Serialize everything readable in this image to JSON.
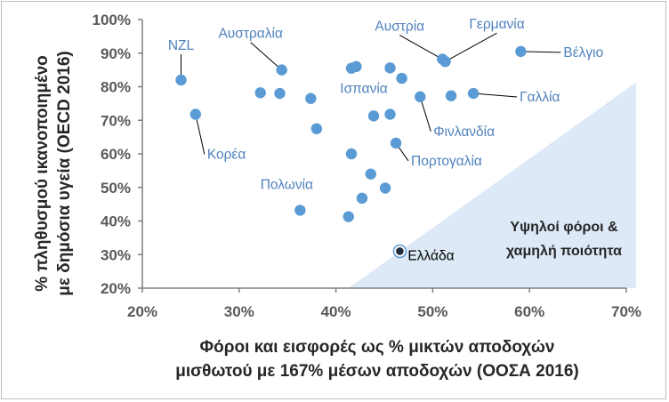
{
  "colors": {
    "point": "#5b9bd5",
    "label": "#4f81bd",
    "highlight_point": "#1f2d3d",
    "zone_fill": "#dde9f6",
    "grid": "#d9d9d9",
    "axis": "#7f7f7f"
  },
  "chart_data": {
    "type": "scatter",
    "xlabel": [
      "Φόροι και εισφορές ως %  μικτών αποδοχών",
      "μισθωτού με 167%  μέσων αποδοχών (ΟΟΣΑ 2016)"
    ],
    "ylabel": [
      "% πληθυσμού ικανοποιημένο",
      "με δημόσια υγεία (OECD 2016)"
    ],
    "xlim": [
      20,
      70
    ],
    "ylim": [
      20,
      100
    ],
    "x_ticks": [
      "20%",
      "30%",
      "40%",
      "50%",
      "60%",
      "70%"
    ],
    "y_ticks": [
      "20%",
      "30%",
      "40%",
      "50%",
      "60%",
      "70%",
      "80%",
      "90%",
      "100%"
    ],
    "grid": false,
    "zone": {
      "label": [
        "Υψηλοί φόροι &",
        "χαμηλή ποιότητα"
      ],
      "polygon": [
        [
          41.3,
          20
        ],
        [
          71,
          20
        ],
        [
          71,
          81.3
        ]
      ]
    },
    "points": [
      {
        "x": 24.0,
        "y": 82.0,
        "label": "NZL"
      },
      {
        "x": 25.5,
        "y": 71.8,
        "label": "Κορέα"
      },
      {
        "x": 32.2,
        "y": 78.2,
        "label": ""
      },
      {
        "x": 34.2,
        "y": 78.0,
        "label": ""
      },
      {
        "x": 34.4,
        "y": 85.0,
        "label": "Αυστραλία"
      },
      {
        "x": 37.4,
        "y": 76.5,
        "label": ""
      },
      {
        "x": 38.0,
        "y": 67.5,
        "label": ""
      },
      {
        "x": 36.3,
        "y": 43.2,
        "label": "Πολωνία"
      },
      {
        "x": 41.3,
        "y": 41.3,
        "label": ""
      },
      {
        "x": 41.6,
        "y": 85.5,
        "label": ""
      },
      {
        "x": 42.1,
        "y": 86.0,
        "label": ""
      },
      {
        "x": 41.6,
        "y": 60.0,
        "label": ""
      },
      {
        "x": 42.7,
        "y": 46.8,
        "label": ""
      },
      {
        "x": 43.6,
        "y": 54.0,
        "label": ""
      },
      {
        "x": 43.9,
        "y": 71.3,
        "label": "Ισπανία"
      },
      {
        "x": 45.1,
        "y": 49.8,
        "label": ""
      },
      {
        "x": 45.6,
        "y": 71.8,
        "label": ""
      },
      {
        "x": 45.6,
        "y": 85.6,
        "label": ""
      },
      {
        "x": 46.8,
        "y": 82.5,
        "label": ""
      },
      {
        "x": 46.2,
        "y": 63.2,
        "label": "Πορτογαλία"
      },
      {
        "x": 48.7,
        "y": 77.0,
        "label": "Φινλανδία"
      },
      {
        "x": 51.0,
        "y": 88.2,
        "label": "Αυστρία"
      },
      {
        "x": 51.3,
        "y": 87.5,
        "label": "Γερμανία"
      },
      {
        "x": 51.9,
        "y": 77.3,
        "label": ""
      },
      {
        "x": 54.2,
        "y": 78.0,
        "label": "Γαλλία"
      },
      {
        "x": 59.1,
        "y": 90.5,
        "label": "Βέλγιο"
      },
      {
        "x": 46.6,
        "y": 31.0,
        "label": "Ελλάδα",
        "highlight": true
      }
    ]
  }
}
